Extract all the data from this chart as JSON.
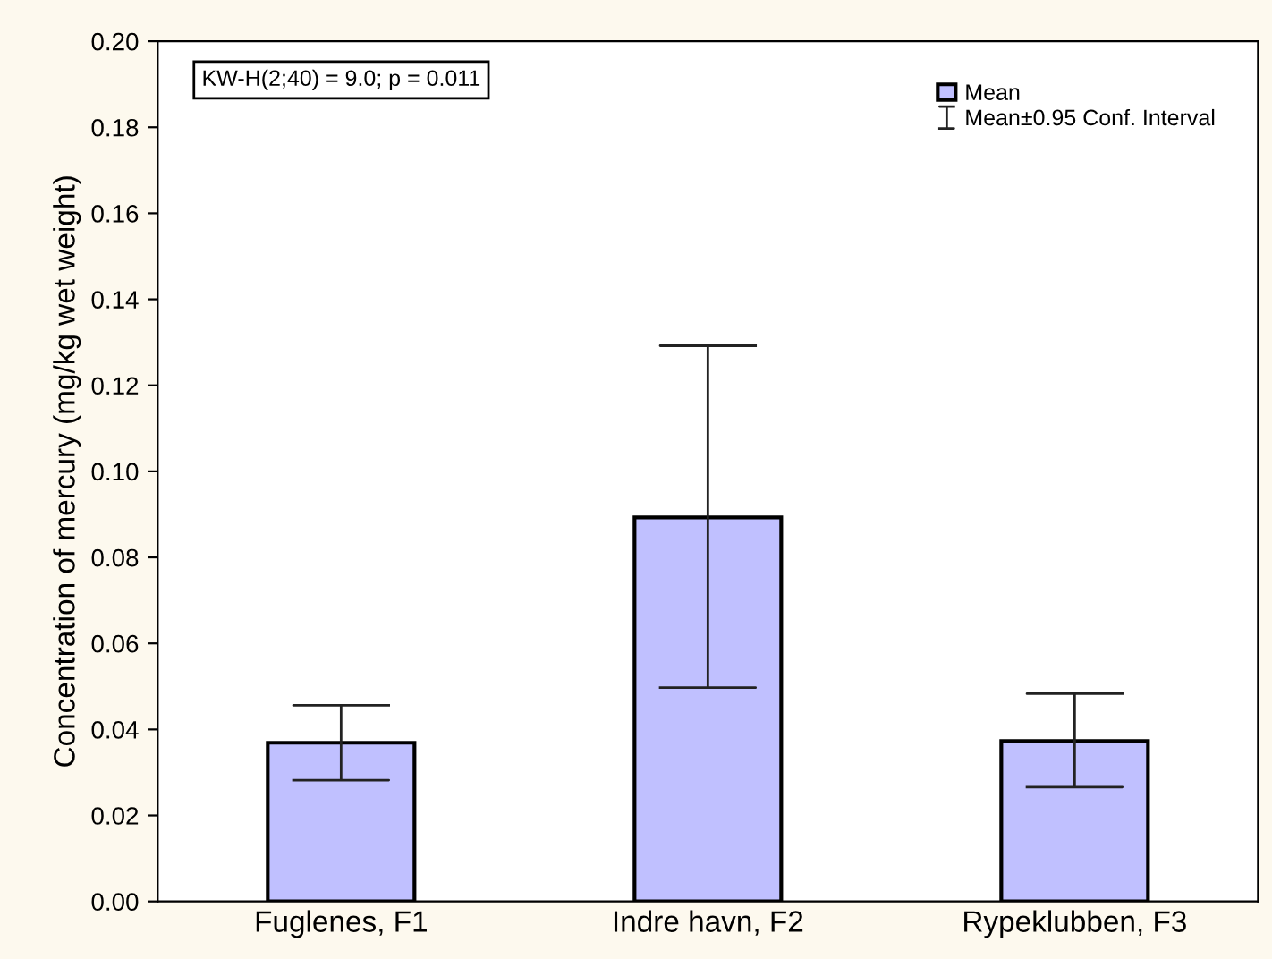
{
  "chart_data": {
    "type": "bar",
    "ylabel": "Concentration of mercury (mg/kg wet weight)",
    "categories": [
      "Fuglenes, F1",
      "Indre havn, F2",
      "Rypeklubben, F3"
    ],
    "series": [
      {
        "name": "Mean",
        "color": "#c0c0ff",
        "values": [
          0.0369,
          0.0893,
          0.0373
        ],
        "errors": [
          [
            0.0282,
            0.0456
          ],
          [
            0.0497,
            0.1292
          ],
          [
            0.0266,
            0.0483
          ]
        ]
      }
    ],
    "ylim": [
      0,
      0.2
    ],
    "yticks": [
      {
        "value": 0,
        "label": "0.00"
      },
      {
        "value": 0.02,
        "label": "0.02"
      },
      {
        "value": 0.04,
        "label": "0.04"
      },
      {
        "value": 0.06,
        "label": "0.06"
      },
      {
        "value": 0.08,
        "label": "0.08"
      },
      {
        "value": 0.1,
        "label": "0.10"
      },
      {
        "value": 0.12,
        "label": "0.12"
      },
      {
        "value": 0.14,
        "label": "0.14"
      },
      {
        "value": 0.16,
        "label": "0.16"
      },
      {
        "value": 0.18,
        "label": "0.18"
      },
      {
        "value": 0.2,
        "label": "0.20"
      }
    ],
    "annotations": [
      "KW-H(2;40) = 9.0; p = 0.011",
      "Mean±0.95 Conf. Interval"
    ],
    "legend": "top right",
    "grid": false
  }
}
